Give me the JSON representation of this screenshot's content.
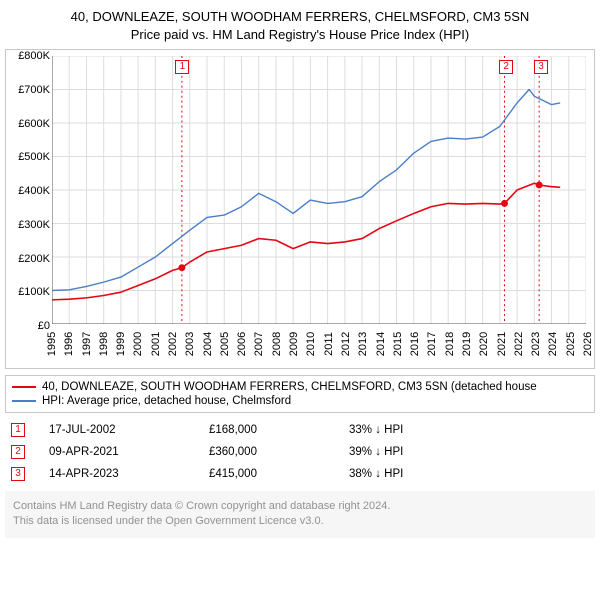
{
  "title": {
    "line1": "40, DOWNLEAZE, SOUTH WOODHAM FERRERS, CHELMSFORD, CM3 5SN",
    "line2": "Price paid vs. HM Land Registry's House Price Index (HPI)",
    "fontsize": 13,
    "color": "#000000"
  },
  "chart": {
    "type": "line",
    "background_color": "#ffffff",
    "border_color": "#c8c8c8",
    "grid_color": "#dddddd",
    "axis_line_color": "#555555",
    "fontsize": 11,
    "x_axis": {
      "min": 1995,
      "max": 2026,
      "tick_step": 1,
      "label_rotation": -90
    },
    "y_axis": {
      "min": 0,
      "max": 800000,
      "tick_step": 100000,
      "labels": [
        "£0",
        "£100K",
        "£200K",
        "£300K",
        "£400K",
        "£500K",
        "£600K",
        "£700K",
        "£800K"
      ]
    },
    "series": [
      {
        "name": "property_price",
        "label": "40, DOWNLEAZE, SOUTH WOODHAM FERRERS, CHELMSFORD, CM3 5SN (detached house",
        "color": "#e30613",
        "line_width": 1.6,
        "data": [
          {
            "x": 1995.0,
            "y": 72000
          },
          {
            "x": 1996.0,
            "y": 74000
          },
          {
            "x": 1997.0,
            "y": 78000
          },
          {
            "x": 1998.0,
            "y": 85000
          },
          {
            "x": 1999.0,
            "y": 95000
          },
          {
            "x": 2000.0,
            "y": 115000
          },
          {
            "x": 2001.0,
            "y": 135000
          },
          {
            "x": 2002.0,
            "y": 160000
          },
          {
            "x": 2002.54,
            "y": 168000
          },
          {
            "x": 2003.0,
            "y": 185000
          },
          {
            "x": 2004.0,
            "y": 215000
          },
          {
            "x": 2005.0,
            "y": 225000
          },
          {
            "x": 2006.0,
            "y": 235000
          },
          {
            "x": 2007.0,
            "y": 255000
          },
          {
            "x": 2008.0,
            "y": 250000
          },
          {
            "x": 2009.0,
            "y": 225000
          },
          {
            "x": 2010.0,
            "y": 245000
          },
          {
            "x": 2011.0,
            "y": 240000
          },
          {
            "x": 2012.0,
            "y": 245000
          },
          {
            "x": 2013.0,
            "y": 255000
          },
          {
            "x": 2014.0,
            "y": 285000
          },
          {
            "x": 2015.0,
            "y": 308000
          },
          {
            "x": 2016.0,
            "y": 330000
          },
          {
            "x": 2017.0,
            "y": 350000
          },
          {
            "x": 2018.0,
            "y": 360000
          },
          {
            "x": 2019.0,
            "y": 358000
          },
          {
            "x": 2020.0,
            "y": 360000
          },
          {
            "x": 2021.0,
            "y": 358000
          },
          {
            "x": 2021.27,
            "y": 360000
          },
          {
            "x": 2022.0,
            "y": 400000
          },
          {
            "x": 2023.0,
            "y": 420000
          },
          {
            "x": 2023.28,
            "y": 415000
          },
          {
            "x": 2024.0,
            "y": 410000
          },
          {
            "x": 2024.5,
            "y": 408000
          }
        ]
      },
      {
        "name": "hpi",
        "label": "HPI: Average price, detached house, Chelmsford",
        "color": "#4a7ec8",
        "line_width": 1.4,
        "data": [
          {
            "x": 1995.0,
            "y": 100000
          },
          {
            "x": 1996.0,
            "y": 102000
          },
          {
            "x": 1997.0,
            "y": 112000
          },
          {
            "x": 1998.0,
            "y": 125000
          },
          {
            "x": 1999.0,
            "y": 140000
          },
          {
            "x": 2000.0,
            "y": 170000
          },
          {
            "x": 2001.0,
            "y": 200000
          },
          {
            "x": 2002.0,
            "y": 240000
          },
          {
            "x": 2003.0,
            "y": 280000
          },
          {
            "x": 2004.0,
            "y": 318000
          },
          {
            "x": 2005.0,
            "y": 325000
          },
          {
            "x": 2006.0,
            "y": 350000
          },
          {
            "x": 2007.0,
            "y": 390000
          },
          {
            "x": 2008.0,
            "y": 365000
          },
          {
            "x": 2009.0,
            "y": 330000
          },
          {
            "x": 2010.0,
            "y": 370000
          },
          {
            "x": 2011.0,
            "y": 360000
          },
          {
            "x": 2012.0,
            "y": 365000
          },
          {
            "x": 2013.0,
            "y": 380000
          },
          {
            "x": 2014.0,
            "y": 425000
          },
          {
            "x": 2015.0,
            "y": 460000
          },
          {
            "x": 2016.0,
            "y": 510000
          },
          {
            "x": 2017.0,
            "y": 545000
          },
          {
            "x": 2018.0,
            "y": 555000
          },
          {
            "x": 2019.0,
            "y": 552000
          },
          {
            "x": 2020.0,
            "y": 558000
          },
          {
            "x": 2021.0,
            "y": 590000
          },
          {
            "x": 2022.0,
            "y": 660000
          },
          {
            "x": 2022.7,
            "y": 700000
          },
          {
            "x": 2023.0,
            "y": 680000
          },
          {
            "x": 2024.0,
            "y": 655000
          },
          {
            "x": 2024.5,
            "y": 660000
          }
        ]
      }
    ],
    "sale_markers": [
      {
        "id": "1",
        "x": 2002.54,
        "y": 168000,
        "line_color": "#e30613",
        "dash": "2,3"
      },
      {
        "id": "2",
        "x": 2021.27,
        "y": 360000,
        "line_color": "#e30613",
        "dash": "2,3"
      },
      {
        "id": "3",
        "x": 2023.28,
        "y": 415000,
        "line_color": "#e30613",
        "dash": "2,3"
      }
    ],
    "marker_box": {
      "border_color": "#e30613",
      "text_color": "#e30613",
      "background": "#ffffff"
    }
  },
  "legend": {
    "border_color": "#c8c8c8",
    "fontsize": 11.5,
    "items": [
      {
        "color": "#e30613",
        "label": "40, DOWNLEAZE, SOUTH WOODHAM FERRERS, CHELMSFORD, CM3 5SN (detached house"
      },
      {
        "color": "#4a7ec8",
        "label": "HPI: Average price, detached house, Chelmsford"
      }
    ]
  },
  "sales_table": {
    "fontsize": 11.5,
    "marker_border_color": "#e30613",
    "marker_text_color": "#e30613",
    "rows": [
      {
        "marker": "1",
        "date": "17-JUL-2002",
        "price": "£168,000",
        "diff": "33% ↓ HPI"
      },
      {
        "marker": "2",
        "date": "09-APR-2021",
        "price": "£360,000",
        "diff": "39% ↓ HPI"
      },
      {
        "marker": "3",
        "date": "14-APR-2023",
        "price": "£415,000",
        "diff": "38% ↓ HPI"
      }
    ]
  },
  "footer": {
    "line1": "Contains HM Land Registry data © Crown copyright and database right 2024.",
    "line2": "This data is licensed under the Open Government Licence v3.0.",
    "background": "#f6f6f6",
    "text_color": "#929292",
    "fontsize": 11
  }
}
